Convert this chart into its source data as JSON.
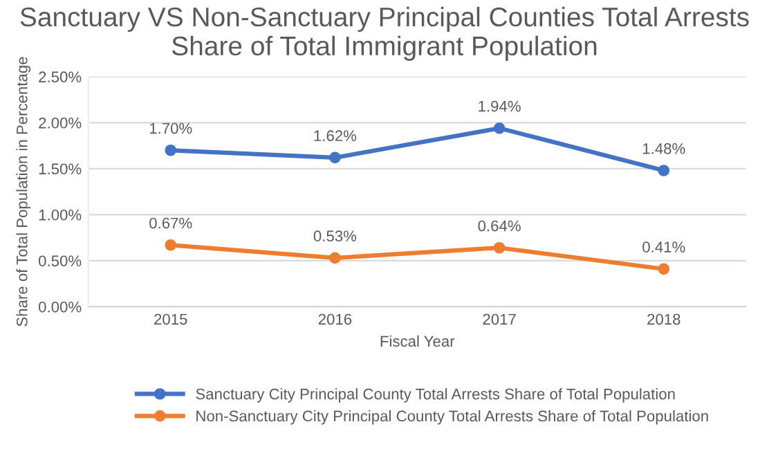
{
  "chart_data": {
    "type": "line",
    "title": "Sanctuary VS Non-Sanctuary Principal Counties Total Arrests Share of Total Immigrant Population",
    "xlabel": "Fiscal Year",
    "ylabel": "Share of Total Population in Percentage",
    "categories": [
      "2015",
      "2016",
      "2017",
      "2018"
    ],
    "series": [
      {
        "name": "Sanctuary City Principal County Total Arrests Share of Total Population",
        "color": "#4472c4",
        "values": [
          1.7,
          1.62,
          1.94,
          1.48
        ],
        "value_labels": [
          "1.70%",
          "1.62%",
          "1.94%",
          "1.48%"
        ]
      },
      {
        "name": "Non-Sanctuary City Principal County Total Arrests Share of Total Population",
        "color": "#ed7d31",
        "values": [
          0.67,
          0.53,
          0.64,
          0.41
        ],
        "value_labels": [
          "0.67%",
          "0.53%",
          "0.64%",
          "0.41%"
        ]
      }
    ],
    "ylim": [
      0,
      2.5
    ],
    "yticks": [
      {
        "value": 0,
        "label": "0.00%"
      },
      {
        "value": 0.5,
        "label": "0.50%"
      },
      {
        "value": 1.0,
        "label": "1.00%"
      },
      {
        "value": 1.5,
        "label": "1.50%"
      },
      {
        "value": 2.0,
        "label": "2.00%"
      },
      {
        "value": 2.5,
        "label": "2.50%"
      }
    ],
    "grid": "y",
    "legend": "bottom",
    "marker": "circle",
    "line_style": "solid"
  }
}
